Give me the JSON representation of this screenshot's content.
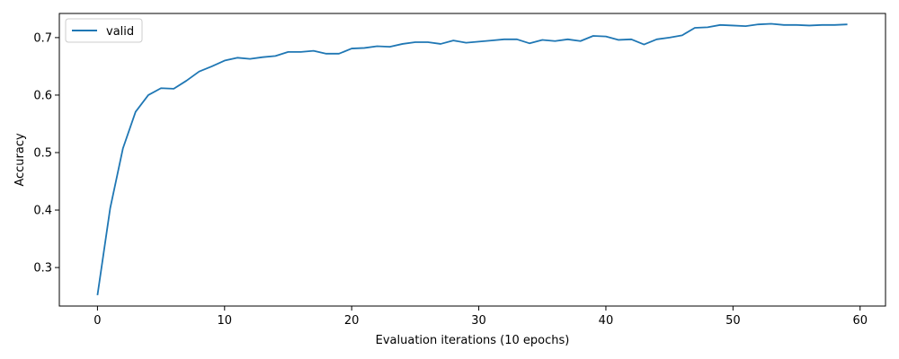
{
  "chart_data": {
    "type": "line",
    "title": "",
    "xlabel": "Evaluation iterations (10 epochs)",
    "ylabel": "Accuracy",
    "xlim": [
      -3,
      62
    ],
    "ylim": [
      0.233,
      0.742
    ],
    "xticks": [
      0,
      10,
      20,
      30,
      40,
      50,
      60
    ],
    "yticks": [
      0.3,
      0.4,
      0.5,
      0.6,
      0.7
    ],
    "grid": false,
    "legend": "top-left",
    "series": [
      {
        "name": "valid",
        "color": "#1f77b4",
        "x": [
          0,
          1,
          2,
          3,
          4,
          5,
          6,
          7,
          8,
          9,
          10,
          11,
          12,
          13,
          14,
          15,
          16,
          17,
          18,
          19,
          20,
          21,
          22,
          23,
          24,
          25,
          26,
          27,
          28,
          29,
          30,
          31,
          32,
          33,
          34,
          35,
          36,
          37,
          38,
          39,
          40,
          41,
          42,
          43,
          44,
          45,
          46,
          47,
          48,
          49,
          50,
          51,
          52,
          53,
          54,
          55,
          56,
          57,
          58,
          59
        ],
        "values": [
          0.252,
          0.403,
          0.507,
          0.571,
          0.6,
          0.612,
          0.611,
          0.625,
          0.641,
          0.65,
          0.66,
          0.665,
          0.663,
          0.666,
          0.668,
          0.675,
          0.675,
          0.677,
          0.672,
          0.672,
          0.681,
          0.682,
          0.685,
          0.684,
          0.689,
          0.692,
          0.692,
          0.689,
          0.695,
          0.691,
          0.693,
          0.695,
          0.697,
          0.697,
          0.69,
          0.696,
          0.694,
          0.697,
          0.694,
          0.703,
          0.702,
          0.696,
          0.697,
          0.688,
          0.697,
          0.7,
          0.704,
          0.717,
          0.718,
          0.722,
          0.721,
          0.72,
          0.723,
          0.724,
          0.722,
          0.722,
          0.721,
          0.722,
          0.722,
          0.723
        ]
      }
    ]
  }
}
